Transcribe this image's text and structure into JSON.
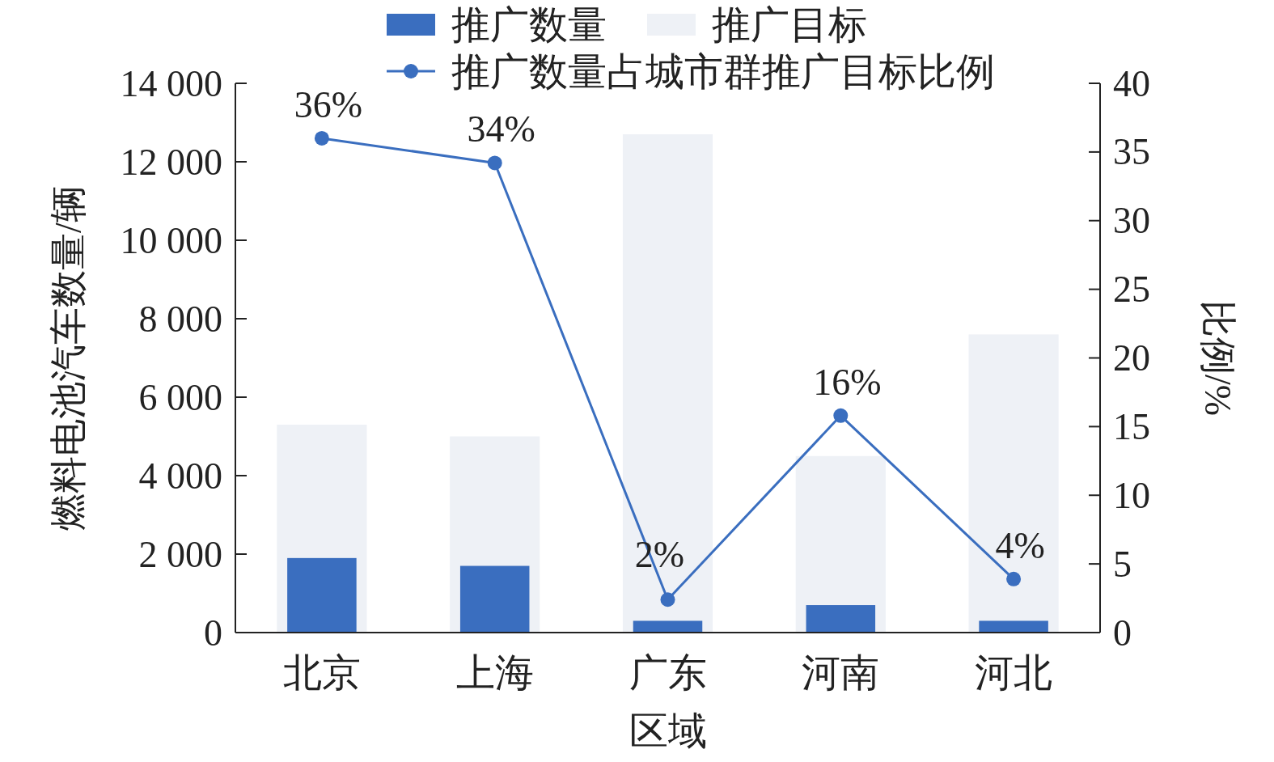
{
  "chart_data": {
    "type": "bar",
    "xlabel": "区域",
    "ylabel": "燃料电池汽车数量/辆",
    "y2label": "比例/%",
    "categories": [
      "北京",
      "上海",
      "广东",
      "河南",
      "河北"
    ],
    "series": [
      {
        "name": "推广数量",
        "color": "#3a6ebf",
        "values": [
          1900,
          1700,
          300,
          700,
          300
        ]
      },
      {
        "name": "推广目标",
        "color": "#eef1f6",
        "values": [
          5300,
          5000,
          12700,
          4500,
          7600
        ]
      },
      {
        "name": "推广数量占城市群推广目标比例",
        "type": "line",
        "axis": "y2",
        "color": "#3a6ebf",
        "values": [
          36,
          34.2,
          2.4,
          15.8,
          3.9
        ],
        "value_labels": [
          "36%",
          "34%",
          "2%",
          "16%",
          "4%"
        ]
      }
    ],
    "ylim": [
      0,
      14000
    ],
    "yticks": [
      {
        "value": 0,
        "label": "0"
      },
      {
        "value": 2000,
        "label": "2 000"
      },
      {
        "value": 4000,
        "label": "4 000"
      },
      {
        "value": 6000,
        "label": "6 000"
      },
      {
        "value": 8000,
        "label": "8 000"
      },
      {
        "value": 10000,
        "label": "10 000"
      },
      {
        "value": 12000,
        "label": "12 000"
      },
      {
        "value": 14000,
        "label": "14 000"
      }
    ],
    "y2lim": [
      0,
      40
    ],
    "y2ticks": [
      0,
      5,
      10,
      15,
      20,
      25,
      30,
      35,
      40
    ],
    "marker": "circle",
    "legend": "top",
    "grid": false
  }
}
